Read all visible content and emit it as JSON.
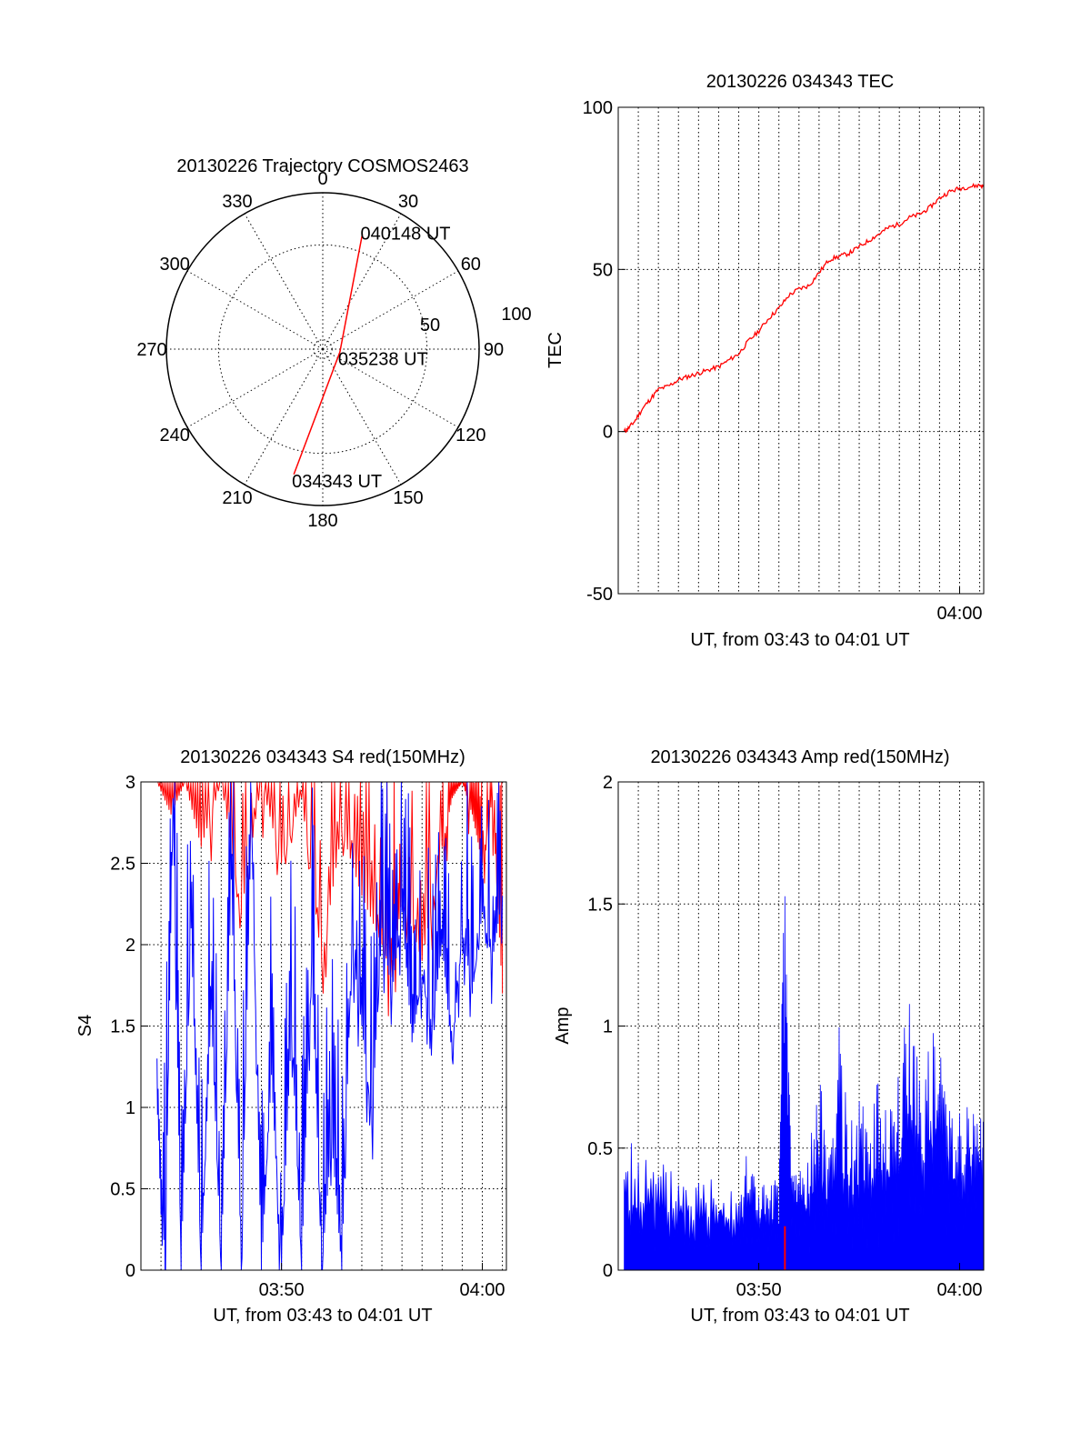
{
  "chart_data": [
    {
      "type": "polar",
      "title": "20130226 Trajectory COSMOS2463",
      "angle_ticks": [
        "0",
        "30",
        "60",
        "90",
        "120",
        "150",
        "180",
        "210",
        "240",
        "270",
        "300",
        "330"
      ],
      "radius_ticks": [
        "50",
        "100"
      ],
      "elevation_range": [
        0,
        90
      ],
      "series": [
        {
          "color": "#ff0000",
          "points": [
            {
              "az": 193,
              "el": 16
            },
            {
              "az": 100,
              "el": 80
            },
            {
              "az": 19,
              "el": 20
            }
          ]
        }
      ],
      "annotations": [
        {
          "text": "034343 UT",
          "az": 193,
          "el": 16
        },
        {
          "text": "035238 UT",
          "az": 100,
          "el": 80
        },
        {
          "text": "040148 UT",
          "az": 19,
          "el": 20
        }
      ],
      "grid": true
    },
    {
      "type": "line",
      "title": "20130226 034343 TEC",
      "xlabel": "UT, from 03:43 to 04:01 UT",
      "ylabel": "TEC",
      "xlim": [
        0,
        18.2
      ],
      "ylim": [
        -50,
        100
      ],
      "yticks": [
        "100",
        "50",
        "0",
        "-50"
      ],
      "xticks": [
        {
          "label": "04:00",
          "x": 17
        }
      ],
      "grid": true,
      "series": [
        {
          "color": "#ff0000",
          "x": [
            0.3,
            0.5,
            0.8,
            1.2,
            1.6,
            2.0,
            2.5,
            3.0,
            3.5,
            4.0,
            4.5,
            5.0,
            5.5,
            6.0,
            6.5,
            7.0,
            7.5,
            8.0,
            8.5,
            9.0,
            9.5,
            10.0,
            10.5,
            11.0,
            11.5,
            12.0,
            12.5,
            13.0,
            13.5,
            14.0,
            14.5,
            15.0,
            15.5,
            16.0,
            16.5,
            17.0,
            17.5,
            18.0,
            18.2
          ],
          "y": [
            0,
            1,
            3,
            7,
            10,
            13,
            14,
            16,
            17,
            18,
            19,
            20,
            22,
            24,
            28,
            31,
            35,
            38,
            42,
            44,
            45,
            49,
            53,
            54,
            55,
            57,
            59,
            61,
            63,
            64,
            66,
            67,
            69,
            72,
            74,
            75,
            75.5,
            76,
            75.5
          ]
        }
      ]
    },
    {
      "type": "line",
      "title": "20130226 034343 S4 red(150MHz)",
      "xlabel": "UT, from 03:43 to 04:01 UT",
      "ylabel": "S4",
      "xlim": [
        0,
        18.2
      ],
      "ylim": [
        0,
        3
      ],
      "yticks": [
        "3",
        "2.5",
        "2",
        "1.5",
        "1",
        "0.5",
        "0"
      ],
      "xticks": [
        {
          "label": "03:50",
          "x": 7
        },
        {
          "label": "04:00",
          "x": 17
        }
      ],
      "grid": true,
      "series": [
        {
          "color": "#ff0000",
          "x": [
            0.8,
            1.5,
            2.2,
            3.0,
            4.0,
            5.0,
            6.0,
            7.0,
            8.0,
            9.0,
            10.0,
            11.0,
            12.0,
            12.5,
            13.0,
            14.0,
            15.0,
            15.5,
            16.0,
            16.5,
            17.0,
            17.5,
            18.0
          ],
          "y": [
            3.0,
            2.8,
            3.0,
            2.6,
            3.0,
            2.2,
            3.0,
            2.5,
            2.9,
            1.9,
            2.7,
            2.3,
            2.0,
            1.8,
            2.3,
            1.9,
            2.6,
            2.9,
            3.0,
            2.8,
            2.5,
            2.9,
            1.7
          ]
        },
        {
          "color": "#0000ff",
          "x": [
            0.8,
            1.2,
            1.6,
            2.0,
            2.5,
            3.0,
            3.5,
            4.0,
            4.5,
            5.0,
            5.5,
            6.0,
            6.5,
            7.0,
            7.5,
            8.0,
            8.5,
            9.0,
            9.5,
            10.0,
            10.5,
            11.0,
            11.5,
            12.0,
            12.5,
            13.0,
            13.5,
            14.0,
            14.5,
            15.0,
            15.5,
            16.0,
            16.5,
            17.0,
            17.5,
            18.0
          ],
          "y": [
            1.3,
            0.0,
            2.9,
            0.0,
            2.1,
            0.0,
            1.6,
            0.0,
            2.4,
            0.0,
            2.8,
            0.0,
            1.2,
            0.0,
            1.5,
            0.0,
            1.9,
            0.0,
            0.8,
            0.0,
            2.0,
            1.5,
            0.9,
            2.1,
            1.7,
            2.2,
            1.4,
            1.8,
            1.5,
            2.0,
            1.3,
            2.1,
            1.7,
            2.2,
            1.9,
            2.3
          ]
        }
      ]
    },
    {
      "type": "line",
      "title": "20130226 034343 Amp red(150MHz)",
      "xlabel": "UT, from 03:43 to 04:01 UT",
      "ylabel": "Amp",
      "xlim": [
        0,
        18.2
      ],
      "ylim": [
        0,
        2
      ],
      "yticks": [
        "2",
        "1.5",
        "1",
        "0.5",
        "0"
      ],
      "xticks": [
        {
          "label": "03:50",
          "x": 7
        },
        {
          "label": "04:00",
          "x": 17
        }
      ],
      "grid": true,
      "series": [
        {
          "color": "#0000ff",
          "x": [
            0.3,
            1.0,
            2.0,
            3.0,
            4.0,
            5.0,
            6.0,
            6.5,
            7.0,
            7.5,
            8.0,
            8.3,
            8.6,
            9.0,
            9.5,
            10.0,
            10.5,
            11.0,
            11.5,
            12.0,
            12.5,
            13.0,
            13.5,
            14.0,
            14.5,
            15.0,
            15.5,
            16.0,
            16.5,
            17.0,
            17.5,
            18.0,
            18.2
          ],
          "y": [
            0.55,
            0.5,
            0.45,
            0.45,
            0.4,
            0.45,
            0.4,
            0.5,
            0.4,
            0.35,
            0.4,
            1.8,
            0.5,
            0.45,
            0.5,
            0.8,
            0.55,
            1.0,
            0.6,
            0.7,
            0.65,
            0.8,
            0.75,
            0.8,
            1.25,
            0.9,
            1.05,
            0.95,
            0.85,
            0.75,
            0.7,
            0.75,
            0.65
          ]
        },
        {
          "color": "#ff0000",
          "x": [
            8.3
          ],
          "y": [
            0.18
          ]
        }
      ]
    }
  ]
}
